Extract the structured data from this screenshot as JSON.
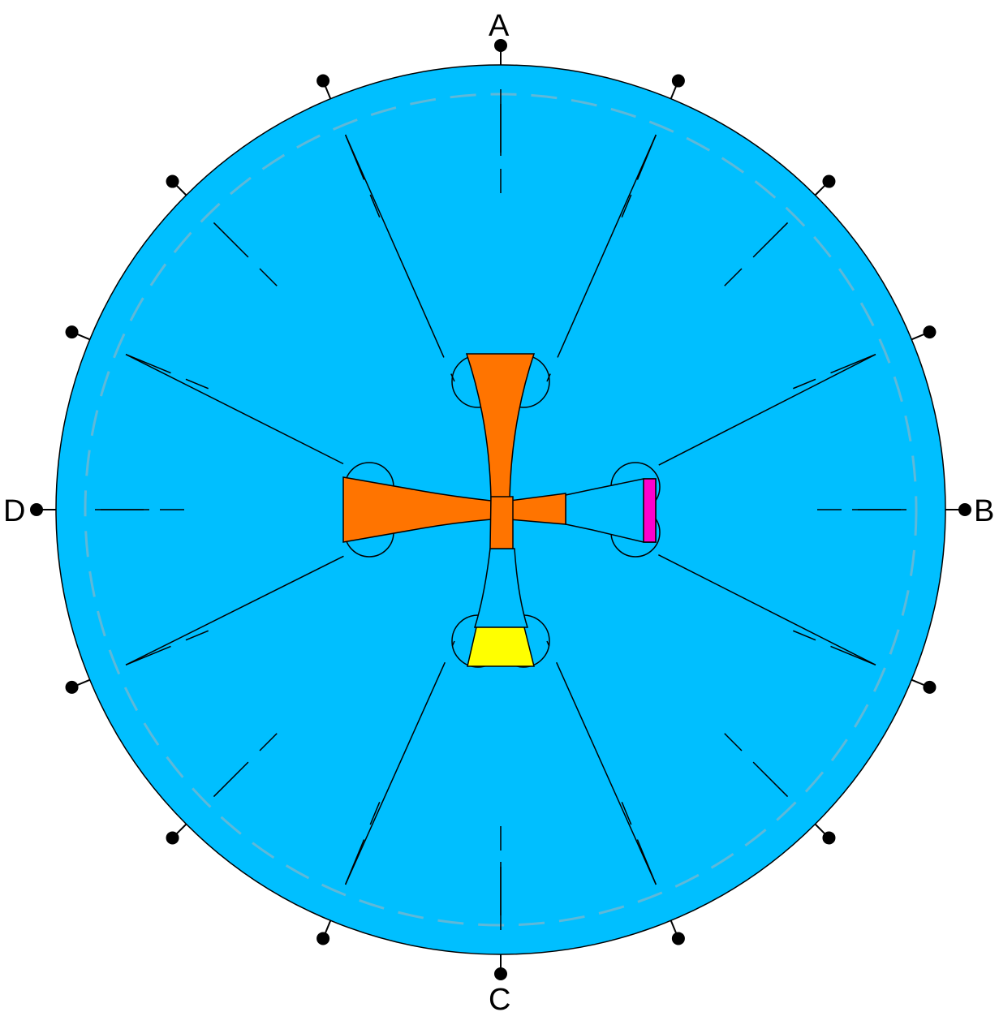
{
  "ports": [
    {
      "id": "A",
      "label": "A"
    },
    {
      "id": "B",
      "label": "B"
    },
    {
      "id": "C",
      "label": "C"
    },
    {
      "id": "D",
      "label": "D"
    }
  ],
  "colors": {
    "disk": "#00bfff",
    "disk_outline": "#000000",
    "dashed_ring": "#5fb8d8",
    "gate_orange": "#ff7400",
    "yellow_block": "#ffff00",
    "magenta_block": "#ff00cc",
    "pin": "#000000"
  },
  "pin_count": 16
}
